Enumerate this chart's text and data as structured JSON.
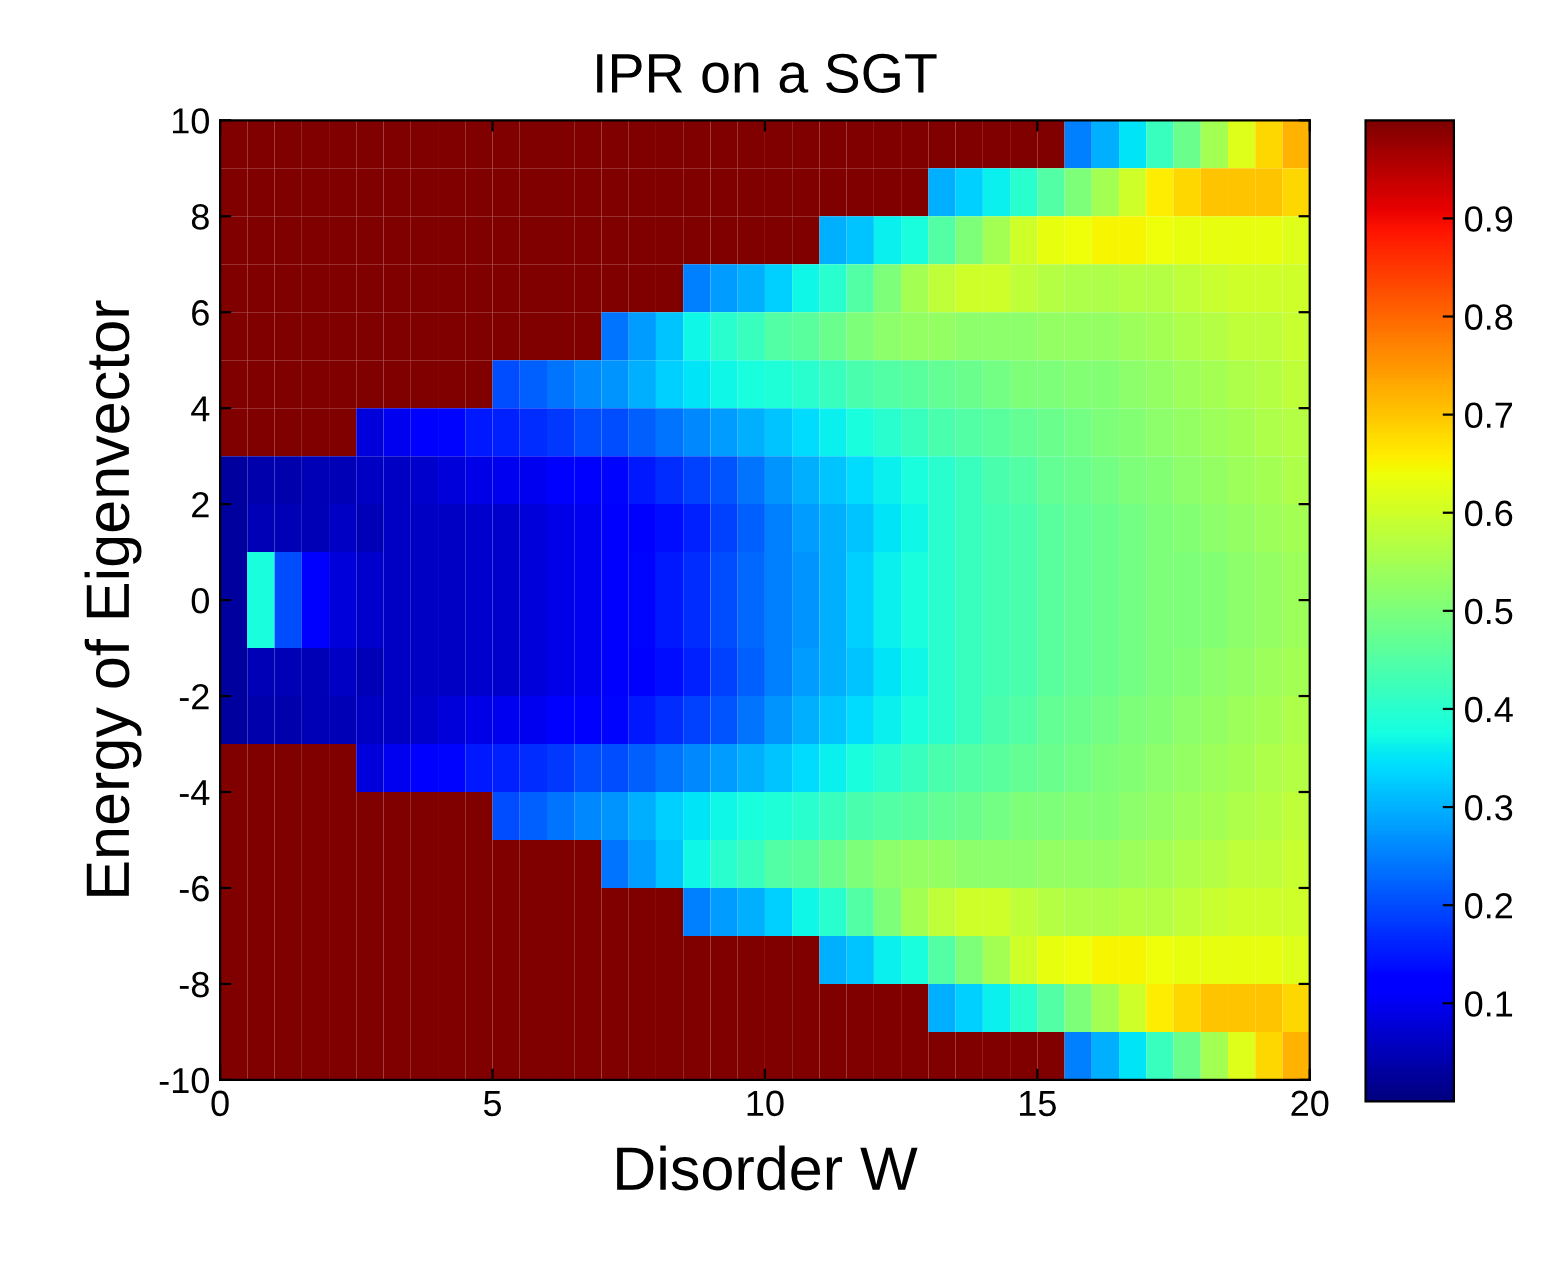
{
  "chart_data": {
    "type": "heatmap",
    "title": "IPR on a SGT",
    "xlabel": "Disorder W",
    "ylabel": "Energy of Eigenvector",
    "xlim": [
      0,
      20
    ],
    "ylim": [
      -10,
      10
    ],
    "xticks": [
      0,
      5,
      10,
      15,
      20
    ],
    "yticks": [
      -10,
      -8,
      -6,
      -4,
      -2,
      0,
      2,
      4,
      6,
      8,
      10
    ],
    "clim": [
      0,
      1
    ],
    "cticks": [
      0.1,
      0.2,
      0.3,
      0.4,
      0.5,
      0.6,
      0.7,
      0.8,
      0.9
    ],
    "cells": [
      [
        1,
        1,
        1,
        1,
        1,
        1,
        1,
        1,
        1,
        1,
        1,
        1,
        1,
        1,
        1,
        1,
        1,
        1,
        1,
        1,
        1,
        1,
        1,
        1,
        1,
        1,
        1,
        1,
        1,
        1,
        1,
        0.25,
        0.3,
        0.35,
        0.42,
        0.48,
        0.55,
        0.62,
        0.68,
        0.72
      ],
      [
        1,
        1,
        1,
        1,
        1,
        1,
        1,
        1,
        1,
        1,
        1,
        1,
        1,
        1,
        1,
        1,
        1,
        1,
        1,
        1,
        1,
        1,
        1,
        1,
        1,
        1,
        0.3,
        0.33,
        0.36,
        0.4,
        0.45,
        0.5,
        0.55,
        0.6,
        0.66,
        0.68,
        0.7,
        0.7,
        0.7,
        0.68
      ],
      [
        1,
        1,
        1,
        1,
        1,
        1,
        1,
        1,
        1,
        1,
        1,
        1,
        1,
        1,
        1,
        1,
        1,
        1,
        1,
        1,
        1,
        1,
        0.3,
        0.32,
        0.36,
        0.38,
        0.45,
        0.5,
        0.55,
        0.6,
        0.63,
        0.64,
        0.65,
        0.65,
        0.64,
        0.63,
        0.63,
        0.63,
        0.63,
        0.62
      ],
      [
        1,
        1,
        1,
        1,
        1,
        1,
        1,
        1,
        1,
        1,
        1,
        1,
        1,
        1,
        1,
        1,
        1,
        0.25,
        0.28,
        0.3,
        0.33,
        0.37,
        0.4,
        0.45,
        0.5,
        0.55,
        0.58,
        0.6,
        0.6,
        0.58,
        0.57,
        0.56,
        0.56,
        0.57,
        0.57,
        0.58,
        0.59,
        0.6,
        0.6,
        0.6
      ],
      [
        1,
        1,
        1,
        1,
        1,
        1,
        1,
        1,
        1,
        1,
        1,
        1,
        1,
        1,
        0.24,
        0.28,
        0.32,
        0.37,
        0.4,
        0.42,
        0.45,
        0.46,
        0.48,
        0.5,
        0.52,
        0.53,
        0.53,
        0.52,
        0.52,
        0.52,
        0.53,
        0.53,
        0.53,
        0.54,
        0.55,
        0.56,
        0.57,
        0.58,
        0.58,
        0.59
      ],
      [
        1,
        1,
        1,
        1,
        1,
        1,
        1,
        1,
        1,
        1,
        0.2,
        0.22,
        0.24,
        0.26,
        0.27,
        0.3,
        0.33,
        0.35,
        0.37,
        0.38,
        0.39,
        0.4,
        0.42,
        0.44,
        0.45,
        0.46,
        0.47,
        0.48,
        0.49,
        0.5,
        0.5,
        0.51,
        0.51,
        0.52,
        0.53,
        0.54,
        0.55,
        0.56,
        0.57,
        0.58
      ],
      [
        1,
        1,
        1,
        1,
        1,
        0.08,
        0.1,
        0.12,
        0.13,
        0.15,
        0.16,
        0.17,
        0.18,
        0.2,
        0.2,
        0.22,
        0.24,
        0.26,
        0.28,
        0.3,
        0.32,
        0.34,
        0.36,
        0.38,
        0.4,
        0.42,
        0.44,
        0.45,
        0.46,
        0.47,
        0.48,
        0.49,
        0.5,
        0.51,
        0.52,
        0.53,
        0.54,
        0.55,
        0.56,
        0.57
      ],
      [
        0.03,
        0.04,
        0.04,
        0.05,
        0.05,
        0.06,
        0.06,
        0.07,
        0.08,
        0.09,
        0.1,
        0.1,
        0.11,
        0.12,
        0.13,
        0.15,
        0.17,
        0.19,
        0.21,
        0.24,
        0.27,
        0.3,
        0.32,
        0.34,
        0.36,
        0.38,
        0.4,
        0.42,
        0.44,
        0.45,
        0.47,
        0.48,
        0.49,
        0.5,
        0.51,
        0.52,
        0.53,
        0.54,
        0.55,
        0.56
      ],
      [
        0.03,
        0.05,
        0.05,
        0.05,
        0.06,
        0.05,
        0.06,
        0.06,
        0.06,
        0.07,
        0.07,
        0.08,
        0.09,
        0.1,
        0.11,
        0.12,
        0.14,
        0.16,
        0.19,
        0.22,
        0.25,
        0.28,
        0.3,
        0.32,
        0.35,
        0.37,
        0.4,
        0.42,
        0.43,
        0.44,
        0.46,
        0.47,
        0.48,
        0.49,
        0.5,
        0.51,
        0.52,
        0.53,
        0.54,
        0.55
      ],
      [
        0.03,
        0.38,
        0.2,
        0.12,
        0.08,
        0.07,
        0.06,
        0.06,
        0.06,
        0.07,
        0.07,
        0.08,
        0.09,
        0.1,
        0.11,
        0.13,
        0.15,
        0.17,
        0.2,
        0.23,
        0.25,
        0.27,
        0.3,
        0.33,
        0.36,
        0.38,
        0.4,
        0.42,
        0.43,
        0.44,
        0.46,
        0.47,
        0.48,
        0.49,
        0.5,
        0.5,
        0.51,
        0.52,
        0.53,
        0.54
      ],
      [
        0.03,
        0.38,
        0.2,
        0.12,
        0.08,
        0.07,
        0.06,
        0.06,
        0.06,
        0.07,
        0.07,
        0.08,
        0.09,
        0.1,
        0.11,
        0.13,
        0.15,
        0.17,
        0.2,
        0.23,
        0.25,
        0.27,
        0.3,
        0.33,
        0.36,
        0.38,
        0.4,
        0.42,
        0.43,
        0.44,
        0.46,
        0.47,
        0.48,
        0.49,
        0.5,
        0.5,
        0.51,
        0.52,
        0.53,
        0.54
      ],
      [
        0.03,
        0.05,
        0.05,
        0.05,
        0.06,
        0.05,
        0.06,
        0.06,
        0.06,
        0.07,
        0.07,
        0.08,
        0.09,
        0.1,
        0.11,
        0.12,
        0.14,
        0.16,
        0.19,
        0.22,
        0.25,
        0.28,
        0.3,
        0.32,
        0.35,
        0.37,
        0.4,
        0.42,
        0.43,
        0.44,
        0.46,
        0.47,
        0.48,
        0.49,
        0.5,
        0.51,
        0.52,
        0.53,
        0.54,
        0.55
      ],
      [
        0.03,
        0.04,
        0.04,
        0.05,
        0.05,
        0.06,
        0.06,
        0.07,
        0.08,
        0.09,
        0.1,
        0.1,
        0.11,
        0.12,
        0.13,
        0.15,
        0.17,
        0.19,
        0.21,
        0.24,
        0.27,
        0.3,
        0.32,
        0.34,
        0.36,
        0.38,
        0.4,
        0.42,
        0.44,
        0.45,
        0.47,
        0.48,
        0.49,
        0.5,
        0.51,
        0.52,
        0.53,
        0.54,
        0.55,
        0.56
      ],
      [
        1,
        1,
        1,
        1,
        1,
        0.08,
        0.1,
        0.12,
        0.13,
        0.15,
        0.16,
        0.17,
        0.18,
        0.2,
        0.2,
        0.22,
        0.24,
        0.26,
        0.28,
        0.3,
        0.32,
        0.34,
        0.36,
        0.38,
        0.4,
        0.42,
        0.44,
        0.45,
        0.46,
        0.47,
        0.48,
        0.49,
        0.5,
        0.51,
        0.52,
        0.53,
        0.54,
        0.55,
        0.56,
        0.57
      ],
      [
        1,
        1,
        1,
        1,
        1,
        1,
        1,
        1,
        1,
        1,
        0.2,
        0.22,
        0.24,
        0.26,
        0.27,
        0.3,
        0.33,
        0.35,
        0.37,
        0.38,
        0.39,
        0.4,
        0.42,
        0.44,
        0.45,
        0.46,
        0.47,
        0.48,
        0.49,
        0.5,
        0.5,
        0.51,
        0.51,
        0.52,
        0.53,
        0.54,
        0.55,
        0.56,
        0.57,
        0.58
      ],
      [
        1,
        1,
        1,
        1,
        1,
        1,
        1,
        1,
        1,
        1,
        1,
        1,
        1,
        1,
        0.24,
        0.28,
        0.32,
        0.37,
        0.4,
        0.42,
        0.45,
        0.46,
        0.48,
        0.5,
        0.52,
        0.53,
        0.53,
        0.52,
        0.52,
        0.52,
        0.53,
        0.53,
        0.53,
        0.54,
        0.55,
        0.56,
        0.57,
        0.58,
        0.58,
        0.59
      ],
      [
        1,
        1,
        1,
        1,
        1,
        1,
        1,
        1,
        1,
        1,
        1,
        1,
        1,
        1,
        1,
        1,
        1,
        0.25,
        0.28,
        0.3,
        0.33,
        0.37,
        0.4,
        0.45,
        0.5,
        0.55,
        0.58,
        0.6,
        0.6,
        0.58,
        0.57,
        0.56,
        0.56,
        0.57,
        0.57,
        0.58,
        0.59,
        0.6,
        0.6,
        0.6
      ],
      [
        1,
        1,
        1,
        1,
        1,
        1,
        1,
        1,
        1,
        1,
        1,
        1,
        1,
        1,
        1,
        1,
        1,
        1,
        1,
        1,
        1,
        1,
        0.3,
        0.32,
        0.36,
        0.38,
        0.45,
        0.5,
        0.55,
        0.6,
        0.63,
        0.64,
        0.65,
        0.65,
        0.64,
        0.63,
        0.63,
        0.63,
        0.63,
        0.62
      ],
      [
        1,
        1,
        1,
        1,
        1,
        1,
        1,
        1,
        1,
        1,
        1,
        1,
        1,
        1,
        1,
        1,
        1,
        1,
        1,
        1,
        1,
        1,
        1,
        1,
        1,
        1,
        0.3,
        0.33,
        0.36,
        0.4,
        0.45,
        0.5,
        0.55,
        0.6,
        0.66,
        0.68,
        0.7,
        0.7,
        0.7,
        0.68
      ],
      [
        1,
        1,
        1,
        1,
        1,
        1,
        1,
        1,
        1,
        1,
        1,
        1,
        1,
        1,
        1,
        1,
        1,
        1,
        1,
        1,
        1,
        1,
        1,
        1,
        1,
        1,
        1,
        1,
        1,
        1,
        1,
        0.25,
        0.3,
        0.35,
        0.42,
        0.48,
        0.55,
        0.62,
        0.68,
        0.72
      ]
    ]
  }
}
